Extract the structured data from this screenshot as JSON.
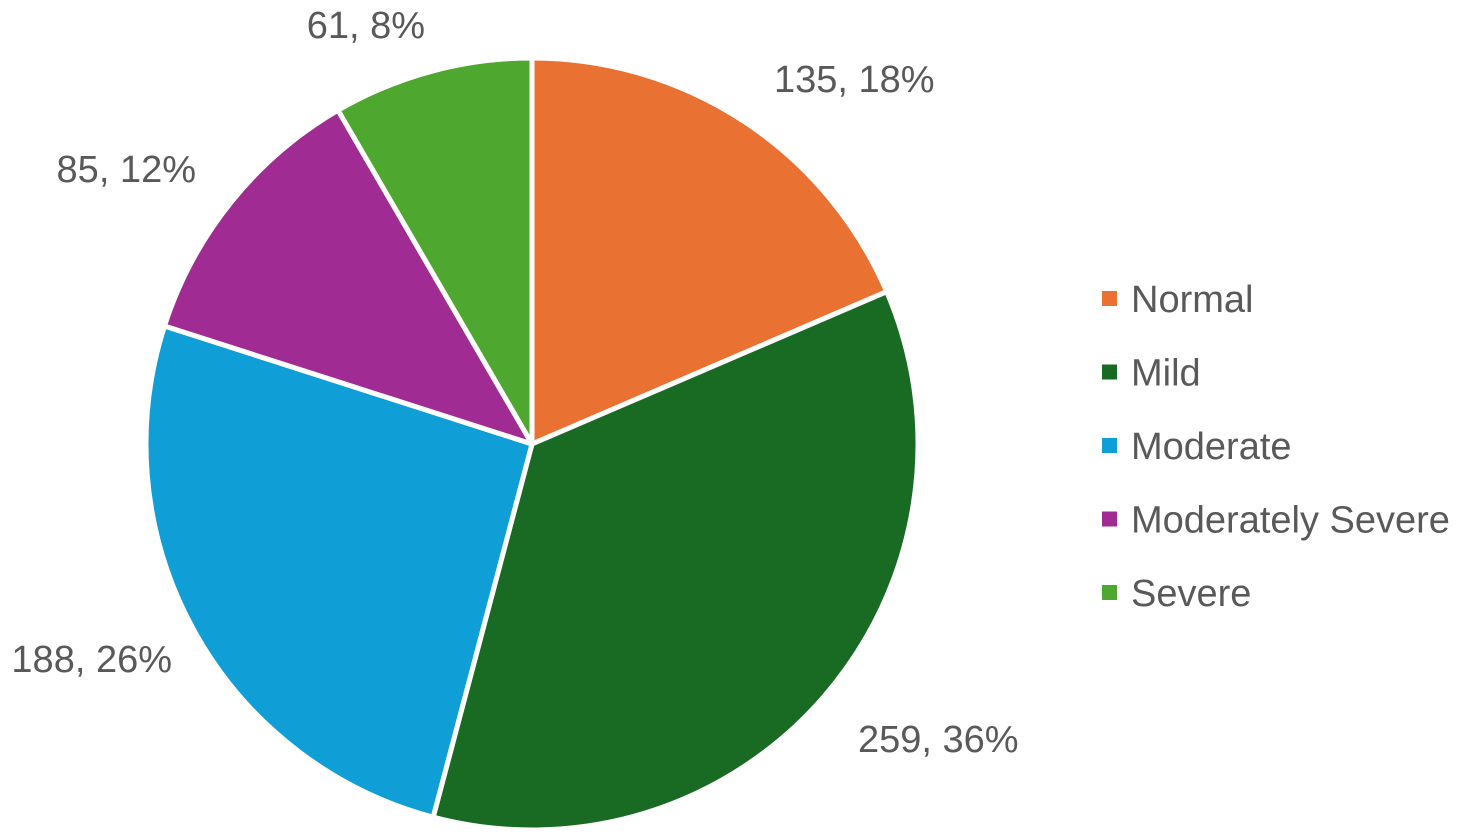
{
  "chart_data": {
    "type": "pie",
    "title": "",
    "categories": [
      "Normal",
      "Mild",
      "Moderate",
      "Moderately Severe",
      "Severe"
    ],
    "values": [
      135,
      259,
      188,
      85,
      61
    ],
    "percentages": [
      "18%",
      "36%",
      "26%",
      "12%",
      "8%"
    ],
    "data_labels": [
      "135, 18%",
      "259, 36%",
      "188, 26%",
      "85, 12%",
      "61, 8%"
    ],
    "colors": [
      "#E97132",
      "#196B24",
      "#0F9ED5",
      "#A02B93",
      "#4EA72E"
    ],
    "start_angle": "12 o'clock",
    "direction": "clockwise",
    "legend": {
      "position": "right",
      "entries": [
        "Normal",
        "Mild",
        "Moderate",
        "Moderately Severe",
        "Severe"
      ]
    }
  }
}
